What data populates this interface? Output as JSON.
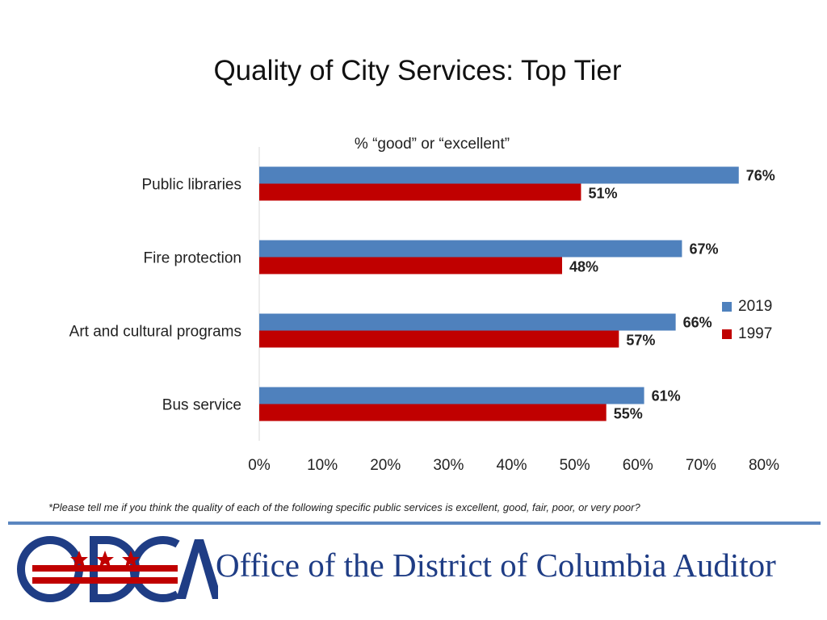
{
  "slide": {
    "title": "Quality of City Services: Top Tier",
    "footnote": "*Please tell me if you think the quality of each of the following specific public services is excellent, good, fair, poor, or very poor?"
  },
  "footer": {
    "logo_text": "ODCA",
    "org_name": "Office of the District of Columbia Auditor",
    "rule_color": "#5b86c0",
    "logo_color": "#1f3d85",
    "logo_accent_color": "#c00000"
  },
  "chart_data": {
    "type": "bar",
    "orientation": "horizontal",
    "title": "% “good” or “excellent”",
    "categories": [
      "Public libraries",
      "Fire protection",
      "Art and cultural programs",
      "Bus service"
    ],
    "series": [
      {
        "name": "2019",
        "color": "#4f81bd",
        "values": [
          76,
          67,
          66,
          61
        ],
        "labels": [
          "76%",
          "67%",
          "66%",
          "61%"
        ]
      },
      {
        "name": "1997",
        "color": "#c00000",
        "values": [
          51,
          48,
          57,
          55
        ],
        "labels": [
          "51%",
          "48%",
          "57%",
          "55%"
        ]
      }
    ],
    "xlim": [
      0,
      80
    ],
    "x_ticks": [
      0,
      10,
      20,
      30,
      40,
      50,
      60,
      70,
      80
    ],
    "x_tick_labels": [
      "0%",
      "10%",
      "20%",
      "30%",
      "40%",
      "50%",
      "60%",
      "70%",
      "80%"
    ],
    "grid": false,
    "legend_position": "right"
  }
}
